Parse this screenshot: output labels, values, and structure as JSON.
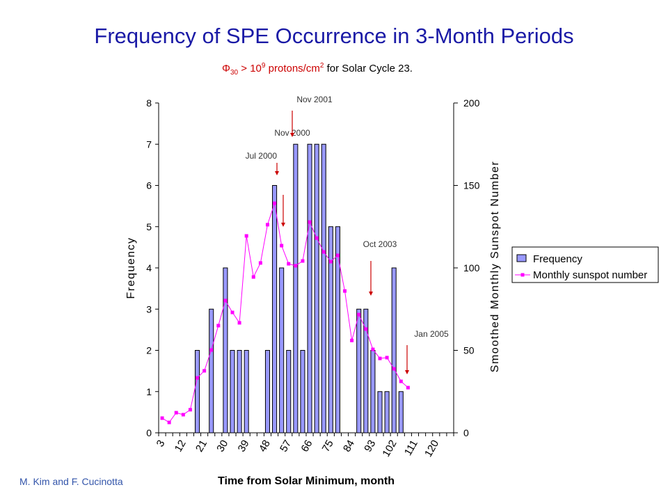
{
  "chart_data": {
    "type": "bar_line",
    "title": "Frequency of SPE Occurrence in 3-Month Periods",
    "subtitle": [
      "Φ",
      "30",
      " > 10",
      "9",
      " protons/cm",
      "2",
      " for Solar Cycle 23."
    ],
    "credit": "M. Kim and F. Cucinotta",
    "x_label": "Time from Solar Minimum, month",
    "y_label": "Frequency",
    "y2_label": "Smoothed Monthly Sunspot Number",
    "categories": [
      "3",
      null,
      null,
      "12",
      null,
      null,
      "21",
      null,
      null,
      "30",
      null,
      null,
      "39",
      null,
      null,
      "48",
      null,
      null,
      "57",
      null,
      null,
      "66",
      null,
      null,
      "75",
      null,
      null,
      "84",
      null,
      null,
      "93",
      null,
      null,
      "102",
      null,
      null,
      "111",
      null,
      null,
      "120",
      null,
      null
    ],
    "series": [
      {
        "name": "Frequency",
        "type": "bar",
        "color": "#9999ff",
        "values": [
          0,
          0,
          0,
          0,
          0,
          2,
          0,
          3,
          0,
          4,
          2,
          2,
          2,
          0,
          0,
          2,
          6,
          4,
          2,
          7,
          2,
          7,
          7,
          7,
          5,
          5,
          0,
          0,
          3,
          3,
          2,
          1,
          1,
          4,
          1,
          0,
          0,
          0,
          0,
          0,
          0,
          0
        ]
      },
      {
        "name": "Monthly sunspot number",
        "type": "line",
        "axis": "y2",
        "color": "#ff00ff",
        "values": [
          8.9,
          6.3,
          12.2,
          11,
          14,
          33.3,
          37.6,
          50.2,
          65,
          80.2,
          73,
          66.7,
          119.4,
          94.5,
          103,
          126.2,
          139.2,
          113.5,
          102.5,
          101.3,
          104.2,
          127.8,
          118.1,
          109.7,
          103.8,
          107.6,
          86,
          56,
          71.7,
          62.9,
          50.6,
          45.1,
          45.6,
          38.8,
          31.2,
          27.4,
          null,
          null,
          null,
          null,
          null,
          null
        ]
      }
    ],
    "annotations": [
      "Jul 2000",
      "Nov 2000",
      "Nov 2001",
      "Oct 2003",
      "Jan 2005"
    ],
    "ylim": [
      0,
      8
    ],
    "yticks": [
      0,
      1,
      2,
      3,
      4,
      5,
      6,
      7,
      8
    ],
    "y2lim": [
      0,
      200
    ],
    "y2ticks": [
      0,
      50,
      100,
      150,
      200
    ],
    "legend": "right"
  }
}
